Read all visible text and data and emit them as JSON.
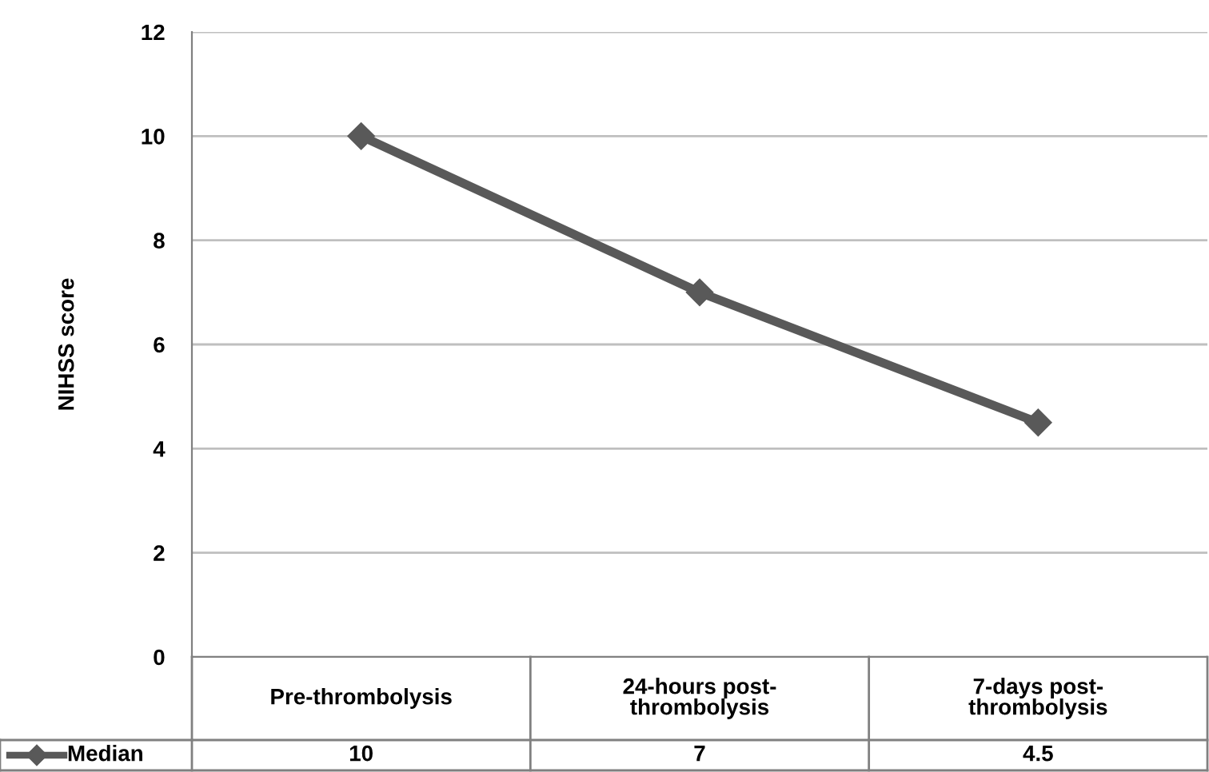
{
  "chart_data": {
    "type": "line",
    "ylabel": "NIHSS score",
    "categories": [
      "Pre-thrombolysis",
      "24-hours post-\nthrombolysis",
      "7-days post-\nthrombolysis"
    ],
    "series": [
      {
        "name": "Median",
        "color": "#595959",
        "values": [
          10,
          7,
          4.5
        ]
      }
    ],
    "ylim": [
      0,
      12
    ],
    "yticks": [
      0,
      2,
      4,
      6,
      8,
      10,
      12
    ],
    "grid": "y",
    "marker": "diamond",
    "line_style": "solid",
    "data_labels": true
  }
}
